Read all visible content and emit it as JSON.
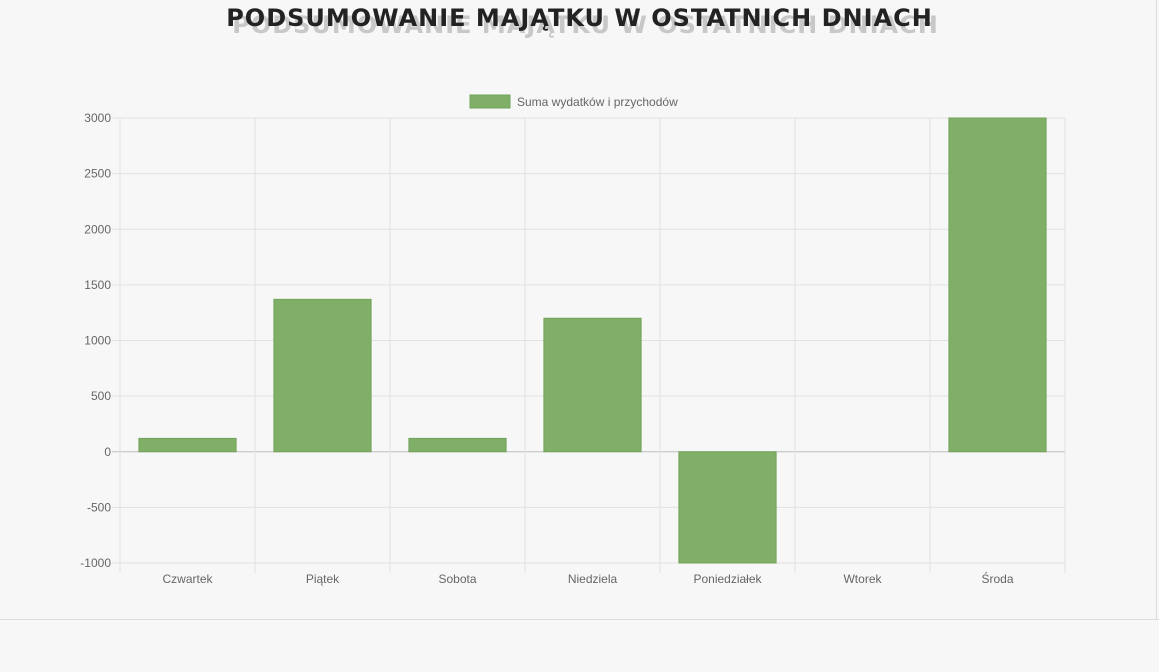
{
  "title": "PODSUMOWANIE MAJĄTKU W OSTATNICH DNIACH",
  "colors": {
    "bar": "#80b068",
    "bar_border": "#72a35a",
    "grid": "#e2e2e2",
    "zero_line": "#bdbdbd",
    "text": "#666666"
  },
  "chart_data": {
    "type": "bar",
    "categories": [
      "Czwartek",
      "Piątek",
      "Sobota",
      "Niedziela",
      "Poniedziałek",
      "Wtorek",
      "Środa"
    ],
    "series": [
      {
        "name": "Suma wydatków i przychodów",
        "values": [
          120,
          1370,
          120,
          1200,
          -1000,
          0,
          3000
        ]
      }
    ],
    "ylim": [
      -1000,
      3000
    ],
    "yticks": [
      3000,
      2500,
      2000,
      1500,
      1000,
      500,
      0,
      -500,
      -1000
    ],
    "grid": true,
    "legend_position": "top-center"
  }
}
